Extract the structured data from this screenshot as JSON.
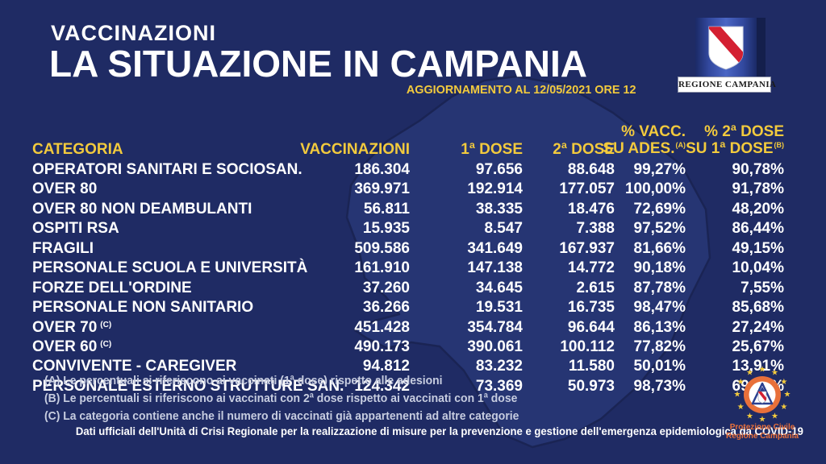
{
  "page": {
    "title_small": "VACCINAZIONI",
    "title_large": "LA SITUAZIONE IN CAMPANIA",
    "update_line": "AGGIORNAMENTO AL 12/05/2021 ORE 12"
  },
  "colors": {
    "bg": "#1f2b64",
    "map_fill": "#263573",
    "map_stroke": "#1a2454",
    "accent_yellow": "#f2ca3d",
    "footnote_gray": "#c7cde0",
    "flag_red": "#d42032",
    "pc_orange": "#e8703a",
    "white": "#ffffff"
  },
  "logos": {
    "regione": {
      "label": "REGIONE CAMPANIA"
    },
    "protezione": {
      "line1": "Protezione Civile",
      "line2": "Regione Campania"
    }
  },
  "table": {
    "headers": {
      "categoria": "CATEGORIA",
      "vaccinazioni": "VACCINAZIONI",
      "dose1": "1ª DOSE",
      "dose2": "2ª DOSE",
      "pct_ades_line1": "% VACC.",
      "pct_ades_line2": "SU ADES.",
      "pct_ades_sup": "(A)",
      "pct_dose_line1": "% 2ª DOSE",
      "pct_dose_line2": "SU 1ª DOSE",
      "pct_dose_sup": "(B)"
    },
    "rows": [
      {
        "categoria": "OPERATORI SANITARI E SOCIOSAN.",
        "sup": "",
        "vaccinazioni": "186.304",
        "dose1": "97.656",
        "dose2": "88.648",
        "pct_ades": "99,27%",
        "pct_dose": "90,78%"
      },
      {
        "categoria": "OVER 80",
        "sup": "",
        "vaccinazioni": "369.971",
        "dose1": "192.914",
        "dose2": "177.057",
        "pct_ades": "100,00%",
        "pct_dose": "91,78%"
      },
      {
        "categoria": "OVER 80 NON DEAMBULANTI",
        "sup": "",
        "vaccinazioni": "56.811",
        "dose1": "38.335",
        "dose2": "18.476",
        "pct_ades": "72,69%",
        "pct_dose": "48,20%"
      },
      {
        "categoria": "OSPITI RSA",
        "sup": "",
        "vaccinazioni": "15.935",
        "dose1": "8.547",
        "dose2": "7.388",
        "pct_ades": "97,52%",
        "pct_dose": "86,44%"
      },
      {
        "categoria": "FRAGILI",
        "sup": "",
        "vaccinazioni": "509.586",
        "dose1": "341.649",
        "dose2": "167.937",
        "pct_ades": "81,66%",
        "pct_dose": "49,15%"
      },
      {
        "categoria": "PERSONALE SCUOLA E UNIVERSITÀ",
        "sup": "",
        "vaccinazioni": "161.910",
        "dose1": "147.138",
        "dose2": "14.772",
        "pct_ades": "90,18%",
        "pct_dose": "10,04%"
      },
      {
        "categoria": "FORZE DELL'ORDINE",
        "sup": "",
        "vaccinazioni": "37.260",
        "dose1": "34.645",
        "dose2": "2.615",
        "pct_ades": "87,78%",
        "pct_dose": "7,55%"
      },
      {
        "categoria": "PERSONALE NON SANITARIO",
        "sup": "",
        "vaccinazioni": "36.266",
        "dose1": "19.531",
        "dose2": "16.735",
        "pct_ades": "98,47%",
        "pct_dose": "85,68%"
      },
      {
        "categoria": "OVER 70",
        "sup": "(C)",
        "vaccinazioni": "451.428",
        "dose1": "354.784",
        "dose2": "96.644",
        "pct_ades": "86,13%",
        "pct_dose": "27,24%"
      },
      {
        "categoria": "OVER 60",
        "sup": "(C)",
        "vaccinazioni": "490.173",
        "dose1": "390.061",
        "dose2": "100.112",
        "pct_ades": "77,82%",
        "pct_dose": "25,67%"
      },
      {
        "categoria": "CONVIVENTE - CAREGIVER",
        "sup": "",
        "vaccinazioni": "94.812",
        "dose1": "83.232",
        "dose2": "11.580",
        "pct_ades": "50,01%",
        "pct_dose": "13,91%"
      },
      {
        "categoria": "PERSONALE ESTERNO STRUTTURE SAN.",
        "sup": "",
        "vaccinazioni": "124.342",
        "dose1": "73.369",
        "dose2": "50.973",
        "pct_ades": "98,73%",
        "pct_dose": "69,47%"
      }
    ]
  },
  "footnotes": [
    "(A) Le percentuali si riferiscono ai vaccinati (1ª dose) rispetto alle adesioni",
    "(B) Le percentuali si riferiscono ai vaccinati con 2ª dose rispetto ai vaccinati con 1ª dose",
    "(C) La categoria contiene anche il numero di vaccinati già appartenenti ad altre categorie"
  ],
  "footer": "Dati ufficiali dell'Unità di Crisi Regionale per la realizzazione di misure per la prevenzione e gestione dell'emergenza epidemiologica da COVID-19",
  "chart_data": {
    "type": "table",
    "title": "VACCINAZIONI — LA SITUAZIONE IN CAMPANIA",
    "updated": "12/05/2021 ORE 12",
    "columns": [
      "CATEGORIA",
      "VACCINAZIONI",
      "1ª DOSE",
      "2ª DOSE",
      "% VACC. SU ADES. (A)",
      "% 2ª DOSE SU 1ª DOSE (B)"
    ],
    "rows": [
      [
        "OPERATORI SANITARI E SOCIOSAN.",
        186304,
        97656,
        88648,
        99.27,
        90.78
      ],
      [
        "OVER 80",
        369971,
        192914,
        177057,
        100.0,
        91.78
      ],
      [
        "OVER 80 NON DEAMBULANTI",
        56811,
        38335,
        18476,
        72.69,
        48.2
      ],
      [
        "OSPITI RSA",
        15935,
        8547,
        7388,
        97.52,
        86.44
      ],
      [
        "FRAGILI",
        509586,
        341649,
        167937,
        81.66,
        49.15
      ],
      [
        "PERSONALE SCUOLA E UNIVERSITÀ",
        161910,
        147138,
        14772,
        90.18,
        10.04
      ],
      [
        "FORZE DELL'ORDINE",
        37260,
        34645,
        2615,
        87.78,
        7.55
      ],
      [
        "PERSONALE NON SANITARIO",
        36266,
        19531,
        16735,
        98.47,
        85.68
      ],
      [
        "OVER 70 (C)",
        451428,
        354784,
        96644,
        86.13,
        27.24
      ],
      [
        "OVER 60 (C)",
        490173,
        390061,
        100112,
        77.82,
        25.67
      ],
      [
        "CONVIVENTE - CAREGIVER",
        94812,
        83232,
        11580,
        50.01,
        13.91
      ],
      [
        "PERSONALE ESTERNO STRUTTURE SAN.",
        124342,
        73369,
        50973,
        98.73,
        69.47
      ]
    ]
  }
}
